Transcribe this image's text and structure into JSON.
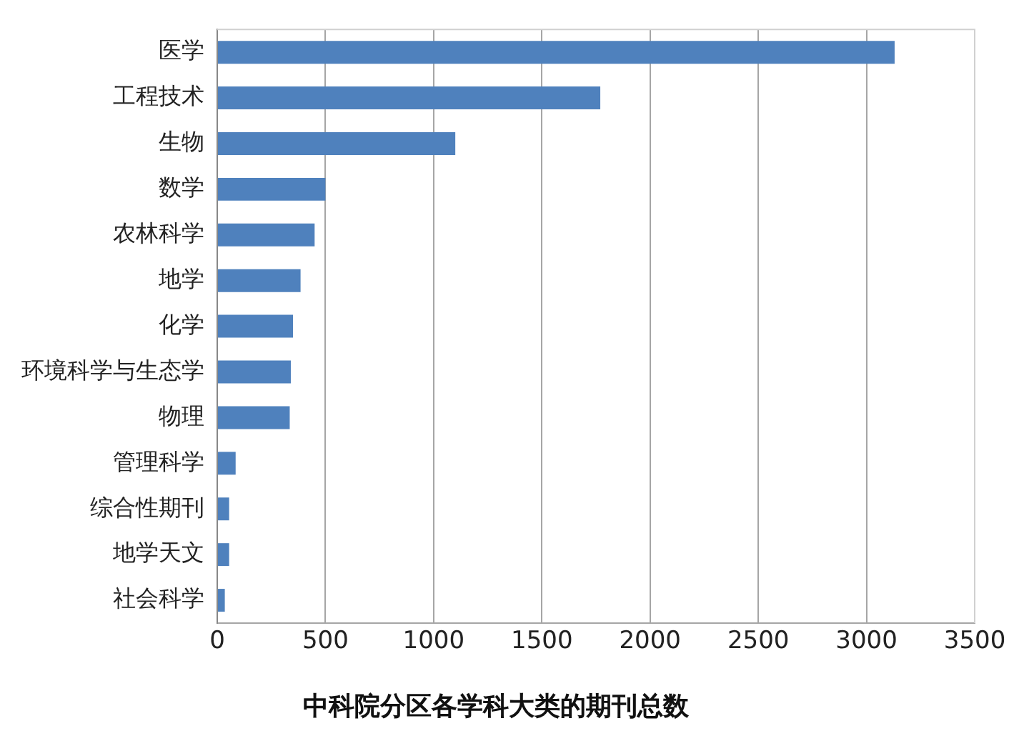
{
  "chart_data": {
    "type": "bar",
    "orientation": "horizontal",
    "title": "中科院分区各学科大类的期刊总数",
    "categories": [
      "医学",
      "工程技术",
      "生物",
      "数学",
      "农林科学",
      "地学",
      "化学",
      "环境科学与生态学",
      "物理",
      "管理科学",
      "综合性期刊",
      "地学天文",
      "社会科学"
    ],
    "values": [
      3130,
      1770,
      1100,
      500,
      450,
      385,
      350,
      340,
      335,
      85,
      55,
      55,
      35
    ],
    "color": "#4f81bd",
    "xlim": [
      0,
      3500
    ],
    "xticks": [
      0,
      500,
      1000,
      1500,
      2000,
      2500,
      3000,
      3500
    ],
    "grid": "x",
    "legend": false
  }
}
